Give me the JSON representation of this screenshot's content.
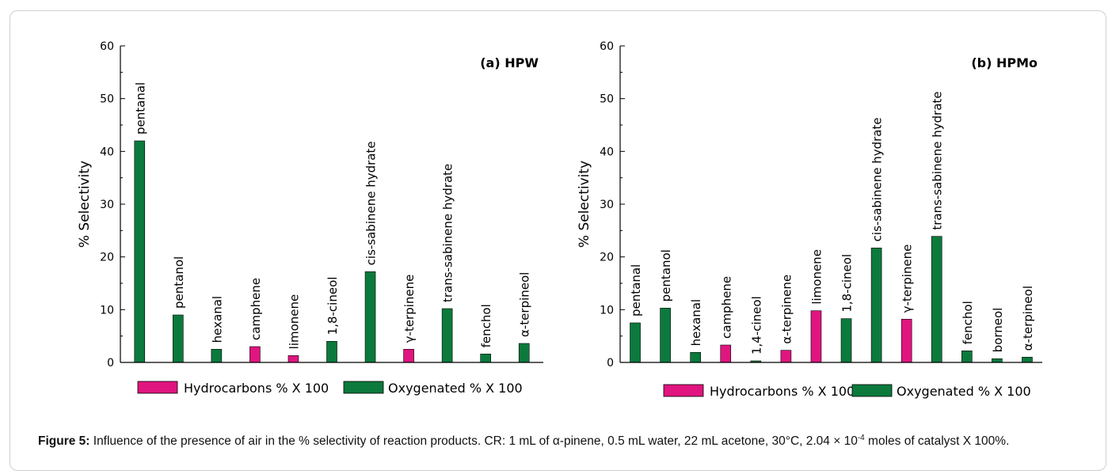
{
  "colors": {
    "hydrocarbon": "#e0157f",
    "oxygenated": "#0b7a3c",
    "axis": "#000000"
  },
  "chart_data": [
    {
      "type": "bar",
      "panel_label": "(a) HPW",
      "ylabel": "% Selectivity",
      "ylim": [
        0,
        60
      ],
      "yticks": [
        "0",
        "10",
        "20",
        "30",
        "40",
        "50",
        "60"
      ],
      "legend": {
        "placement": "bottom",
        "hydrocarbons": "Hydrocarbons % X 100",
        "oxygenated": "Oxygenated % X 100"
      },
      "bars": [
        {
          "label": "pentanal",
          "value": 42,
          "group": "oxygenated"
        },
        {
          "label": "pentanol",
          "value": 9,
          "group": "oxygenated"
        },
        {
          "label": "hexanal",
          "value": 2.5,
          "group": "oxygenated"
        },
        {
          "label": "camphene",
          "value": 3,
          "group": "hydrocarbon"
        },
        {
          "label": "limonene",
          "value": 1.3,
          "group": "hydrocarbon"
        },
        {
          "label": "1,8-cineol",
          "value": 4,
          "group": "oxygenated"
        },
        {
          "label": "cis-sabinene hydrate",
          "value": 17.2,
          "group": "oxygenated"
        },
        {
          "label": "γ-terpinene",
          "value": 2.5,
          "group": "hydrocarbon"
        },
        {
          "label": "trans-sabinene hydrate",
          "value": 10.2,
          "group": "oxygenated"
        },
        {
          "label": "fenchol",
          "value": 1.6,
          "group": "oxygenated"
        },
        {
          "label": "α-terpineol",
          "value": 3.6,
          "group": "oxygenated"
        }
      ]
    },
    {
      "type": "bar",
      "panel_label": "(b) HPMo",
      "ylabel": "% Selectivity",
      "ylim": [
        0,
        60
      ],
      "yticks": [
        "0",
        "10",
        "20",
        "30",
        "40",
        "50",
        "60"
      ],
      "legend": {
        "placement": "bottom",
        "hydrocarbons": "Hydrocarbons % X 100",
        "oxygenated": "Oxygenated % X 100"
      },
      "bars": [
        {
          "label": "pentanal",
          "value": 7.5,
          "group": "oxygenated"
        },
        {
          "label": "pentanol",
          "value": 10.3,
          "group": "oxygenated"
        },
        {
          "label": "hexanal",
          "value": 1.9,
          "group": "oxygenated"
        },
        {
          "label": "camphene",
          "value": 3.3,
          "group": "hydrocarbon"
        },
        {
          "label": "1,4-cineol",
          "value": 0.3,
          "group": "oxygenated"
        },
        {
          "label": "α-terpinene",
          "value": 2.3,
          "group": "hydrocarbon"
        },
        {
          "label": "limonene",
          "value": 9.8,
          "group": "hydrocarbon"
        },
        {
          "label": "1,8-cineol",
          "value": 8.3,
          "group": "oxygenated"
        },
        {
          "label": "cis-sabinene hydrate",
          "value": 21.7,
          "group": "oxygenated"
        },
        {
          "label": "γ-terpinene",
          "value": 8.2,
          "group": "hydrocarbon"
        },
        {
          "label": "trans-sabinene hydrate",
          "value": 23.9,
          "group": "oxygenated"
        },
        {
          "label": "fenchol",
          "value": 2.2,
          "group": "oxygenated"
        },
        {
          "label": "borneol",
          "value": 0.7,
          "group": "oxygenated"
        },
        {
          "label": "α-terpineol",
          "value": 1,
          "group": "oxygenated"
        }
      ]
    }
  ],
  "caption": {
    "label": "Figure 5:",
    "text_before_sup": " Influence of the presence of air in the % selectivity of reaction products. CR: 1 mL of α-pinene, 0.5 mL water, 22 mL acetone, 30°C, 2.04 × 10",
    "sup": "-4",
    "text_after_sup": " moles of catalyst X 100%."
  }
}
